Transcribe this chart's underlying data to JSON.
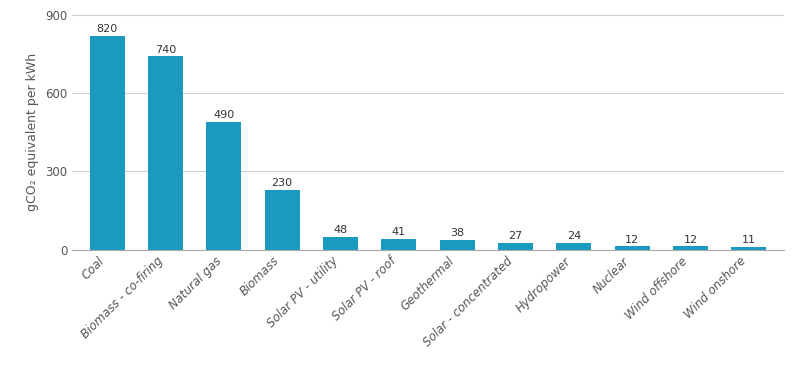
{
  "categories": [
    "Coal",
    "Biomass - co-firing",
    "Natural gas",
    "Biomass",
    "Solar PV - utility",
    "Solar PV - roof",
    "Geothermal",
    "Solar - concentrated",
    "Hydropower",
    "Nuclear",
    "Wind offshore",
    "Wind onshore"
  ],
  "values": [
    820,
    740,
    490,
    230,
    48,
    41,
    38,
    27,
    24,
    12,
    12,
    11
  ],
  "bar_color": "#1a9abf",
  "ylabel": "gCO₂ equivalent per kWh",
  "ylim": [
    0,
    900
  ],
  "yticks": [
    0,
    300,
    600,
    900
  ],
  "background_color": "#ffffff",
  "grid_color": "#d0d0d0",
  "tick_fontsize": 8.5,
  "ylabel_fontsize": 9,
  "bar_label_fontsize": 8
}
